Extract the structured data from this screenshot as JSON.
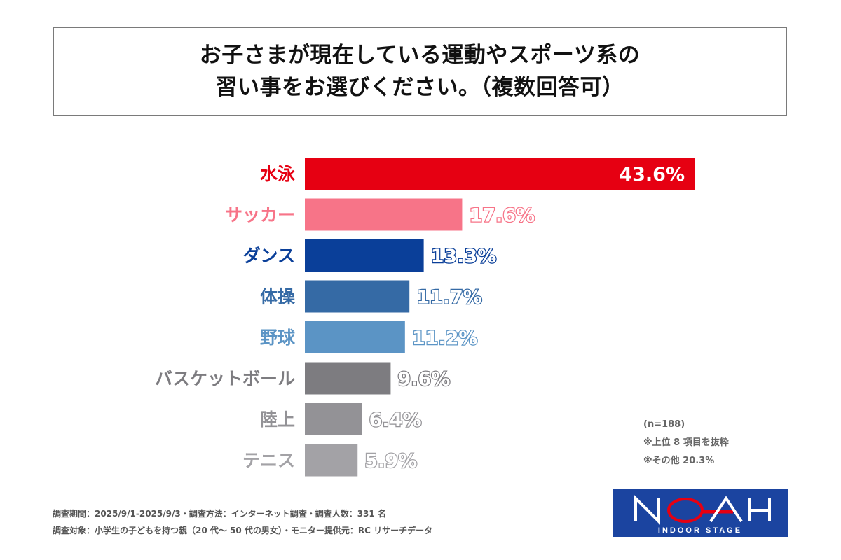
{
  "title": {
    "line1": "お子さまが現在している運動やスポーツ系の",
    "line2": "習い事をお選びください。（複数回答可）"
  },
  "chart_data": {
    "type": "bar",
    "orientation": "horizontal",
    "title": "お子さまが現在している運動やスポーツ系の習い事をお選びください。（複数回答可）",
    "xlabel": "",
    "ylabel": "",
    "xlim": [
      0,
      43.6
    ],
    "grid": false,
    "categories": [
      "水泳",
      "サッカー",
      "ダンス",
      "体操",
      "野球",
      "バスケットボール",
      "陸上",
      "テニス"
    ],
    "values": [
      43.6,
      17.6,
      13.3,
      11.7,
      11.2,
      9.6,
      6.4,
      5.9
    ],
    "value_labels": [
      "43.6%",
      "17.6%",
      "13.3%",
      "11.7%",
      "11.2%",
      "9.6%",
      "6.4%",
      "5.9%"
    ],
    "unit": "%",
    "colors": [
      "#e60012",
      "#f77488",
      "#0a3f99",
      "#356aa5",
      "#5b94c5",
      "#7d7c80",
      "#939296",
      "#a3a2a6"
    ]
  },
  "notes": {
    "n": "(n=188)",
    "top": "※上位 8 項目を抜粋",
    "other": "※その他 20.3%"
  },
  "footer": {
    "line1": "調査期間：2025/9/1-2025/9/3・調査方法：インターネット調査・調査人数：331 名",
    "line2": "調査対象：小学生の子どもを持つ親（20 代～ 50 代の男女）・モニター提供元：RC リサーチデータ"
  },
  "logo": {
    "name": "NOAH",
    "subtitle": "INDOOR STAGE"
  }
}
